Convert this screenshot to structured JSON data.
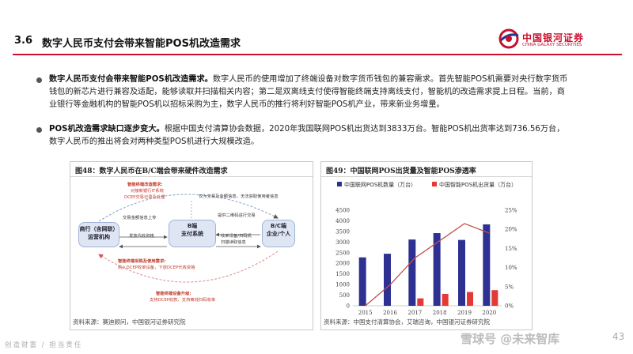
{
  "header": {
    "section_number": "3.6",
    "section_title": "数字人民币支付会带来智能POS机改造需求",
    "logo_text": "中国银河证券",
    "logo_sub": "CHINA GALAXY SECURITIES"
  },
  "bullets": [
    {
      "lead": "数字人民币支付会带来智能POS机改造需求。",
      "text": "数字人民币的使用增加了终端设备对数字货币钱包的兼容需求。首先智能POS机需要对央行数字货币钱包的新芯片进行兼容及适配，能够读取并扫描相关内容；第二是双离线支付使得智能终端支持离线支付，智能机的改造需求提上日程。当前，商业银行等金融机构的智能POS机以招标采购为主，数字人民币的推行将利好智能POS机产业，带来新业务增量。"
    },
    {
      "lead": "POS机改造需求缺口逐步变大。",
      "text": "根据中国支付清算协会数据，2020年我国联网POS机出货达到3833万台。智能POS机出货率达到736.56万台，数字人民币的推出将会对两种类型POS机进行大规模改造。"
    }
  ],
  "figure_left": {
    "title": "图48：数字人民币在B/C端会带来硬件改造需求",
    "source": "资料来源：赛迪顾问，中国银河证券研究院",
    "boxes": {
      "bank": "商行（含网联）运营机构",
      "b": "B端\n支付系统",
      "c": "B/C端\n企业/个人"
    },
    "labels": {
      "top_red_1": "智能终端改造需求:",
      "top_red_2": "对接新银行IT系统",
      "top_red_3": "DCEP交易记录及处理",
      "top_right": "仅为交易及金额信息，无法获取使用者信息",
      "flow_1": "交易金额信息上传",
      "flow_2": "发放代收资格",
      "flow_3": "提供二维码进行交易",
      "flow_4": "收单设备/扫码机",
      "flow_5": "扫描读取信息",
      "mid_red_1": "智能终端采购及使用需求:",
      "mid_red_2": "购入DCEP收单设备，下放DCEP代收资格",
      "bot_red_1": "智能终端设备升级:",
      "bot_red_2": "支持DCEP收款、支持离线扫码收单"
    }
  },
  "figure_right": {
    "title": "图49：中国联网POS出货量及智能POS渗透率",
    "source": "资料来源：中国支付清算协会，艾瑞咨询，中国银河证券研究院"
  },
  "chart_data": {
    "type": "bar",
    "categories": [
      "2015",
      "2016",
      "2017",
      "2018",
      "2019",
      "2020"
    ],
    "series": [
      {
        "name": "中国联网POS机数量（万台）",
        "type": "bar",
        "axis": "left",
        "color": "#2e3192",
        "values": [
          2280,
          2450,
          3120,
          3420,
          3100,
          3833
        ]
      },
      {
        "name": "中国智能POS机出货量（万台）",
        "type": "bar",
        "axis": "left",
        "color": "#e53935",
        "values": [
          0,
          0,
          350,
          560,
          650,
          737
        ]
      },
      {
        "name": "",
        "type": "line",
        "axis": "right",
        "color": "#c0504d",
        "values": [
          0,
          5.5,
          12.5,
          17,
          21.5,
          19
        ]
      }
    ],
    "ylim_left": [
      0,
      4500
    ],
    "yticks_left": [
      0,
      500,
      1000,
      1500,
      2000,
      2500,
      3000,
      3500,
      4000,
      4500
    ],
    "ylim_right": [
      0,
      25
    ],
    "yticks_right": [
      "0%",
      "5%",
      "10%",
      "15%",
      "20%",
      "25%"
    ],
    "legend_position": "top"
  },
  "footer": {
    "left_text": "创造财富 / 担当责任",
    "watermark": "雪球号 @未来智库",
    "page_number": "43"
  },
  "colors": {
    "brand_red": "#c8102e",
    "bar_blue": "#2e3192",
    "bar_red": "#e53935"
  }
}
